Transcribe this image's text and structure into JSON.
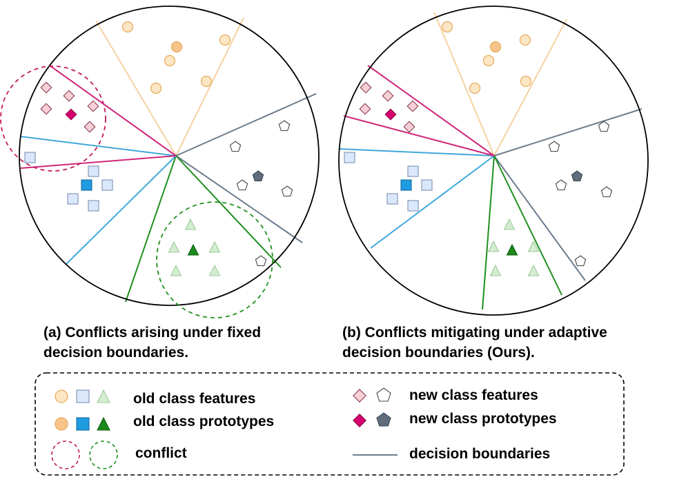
{
  "captions": {
    "a_line1": "(a) Conflicts arising under fixed",
    "a_line2": "decision boundaries.",
    "b_line1": "(b)  Conflicts mitigating under adaptive",
    "b_line2": "decision boundaries (Ours)."
  },
  "legend": {
    "old_features": "old class features",
    "old_prototypes": "old class prototypes",
    "conflict": "conflict",
    "new_features": "new class features",
    "new_prototypes": "new class prototypes",
    "boundaries": "decision boundaries"
  },
  "colors": {
    "orange_fill": "#fde6c4",
    "orange_proto": "#f8c48a",
    "orange_stroke": "#e4a95a",
    "orange_line": "#f6d2a0",
    "blue_fill": "#dbe8fb",
    "blue_proto": "#1f9ce0",
    "blue_stroke": "#7b8fb5",
    "blue_line": "#3ea8dc",
    "green_fill": "#d4ecd2",
    "green_proto": "#1c8a1c",
    "green_stroke": "#9ccb98",
    "green_line": "#1e8f1e",
    "pink_fill": "#f6d0d6",
    "pink_proto": "#d6006f",
    "pink_stroke": "#8a3a50",
    "pink_line": "#d0267a",
    "grey_fill": "#ffffff",
    "grey_proto": "#5f6d7c",
    "grey_stroke": "#444444",
    "grey_line": "#6b7b8c"
  }
}
